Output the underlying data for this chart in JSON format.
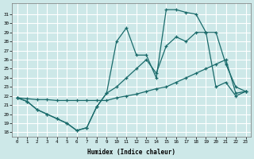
{
  "xlabel": "Humidex (Indice chaleur)",
  "background_color": "#cde8e8",
  "grid_color": "#b8d8d8",
  "line_color": "#1a6b6b",
  "xlim": [
    -0.5,
    23.5
  ],
  "ylim": [
    17.5,
    32.2
  ],
  "xticks": [
    0,
    1,
    2,
    3,
    4,
    5,
    6,
    7,
    8,
    9,
    10,
    11,
    12,
    13,
    14,
    15,
    16,
    17,
    18,
    19,
    20,
    21,
    22,
    23
  ],
  "yticks": [
    18,
    19,
    20,
    21,
    22,
    23,
    24,
    25,
    26,
    27,
    28,
    29,
    30,
    31
  ],
  "curve1_y": [
    21.8,
    21.4,
    20.5,
    20.0,
    19.5,
    19.0,
    18.2,
    18.5,
    20.8,
    22.3,
    28.0,
    29.5,
    26.5,
    26.5,
    24.0,
    31.5,
    31.5,
    31.2,
    31.0,
    29.0,
    23.0,
    23.5,
    22.0,
    22.5
  ],
  "curve2_y": [
    21.8,
    21.4,
    20.5,
    20.0,
    19.5,
    19.0,
    18.2,
    18.5,
    20.8,
    22.3,
    23.0,
    24.0,
    25.0,
    26.0,
    24.5,
    27.5,
    28.5,
    28.0,
    29.0,
    29.0,
    29.0,
    25.5,
    23.0,
    22.5
  ],
  "curve3_y": [
    21.8,
    21.7,
    21.6,
    21.6,
    21.5,
    21.5,
    21.5,
    21.5,
    21.5,
    21.5,
    21.8,
    22.0,
    22.2,
    22.5,
    22.8,
    23.0,
    23.5,
    24.0,
    24.5,
    25.0,
    25.5,
    26.0,
    22.3,
    22.5
  ]
}
